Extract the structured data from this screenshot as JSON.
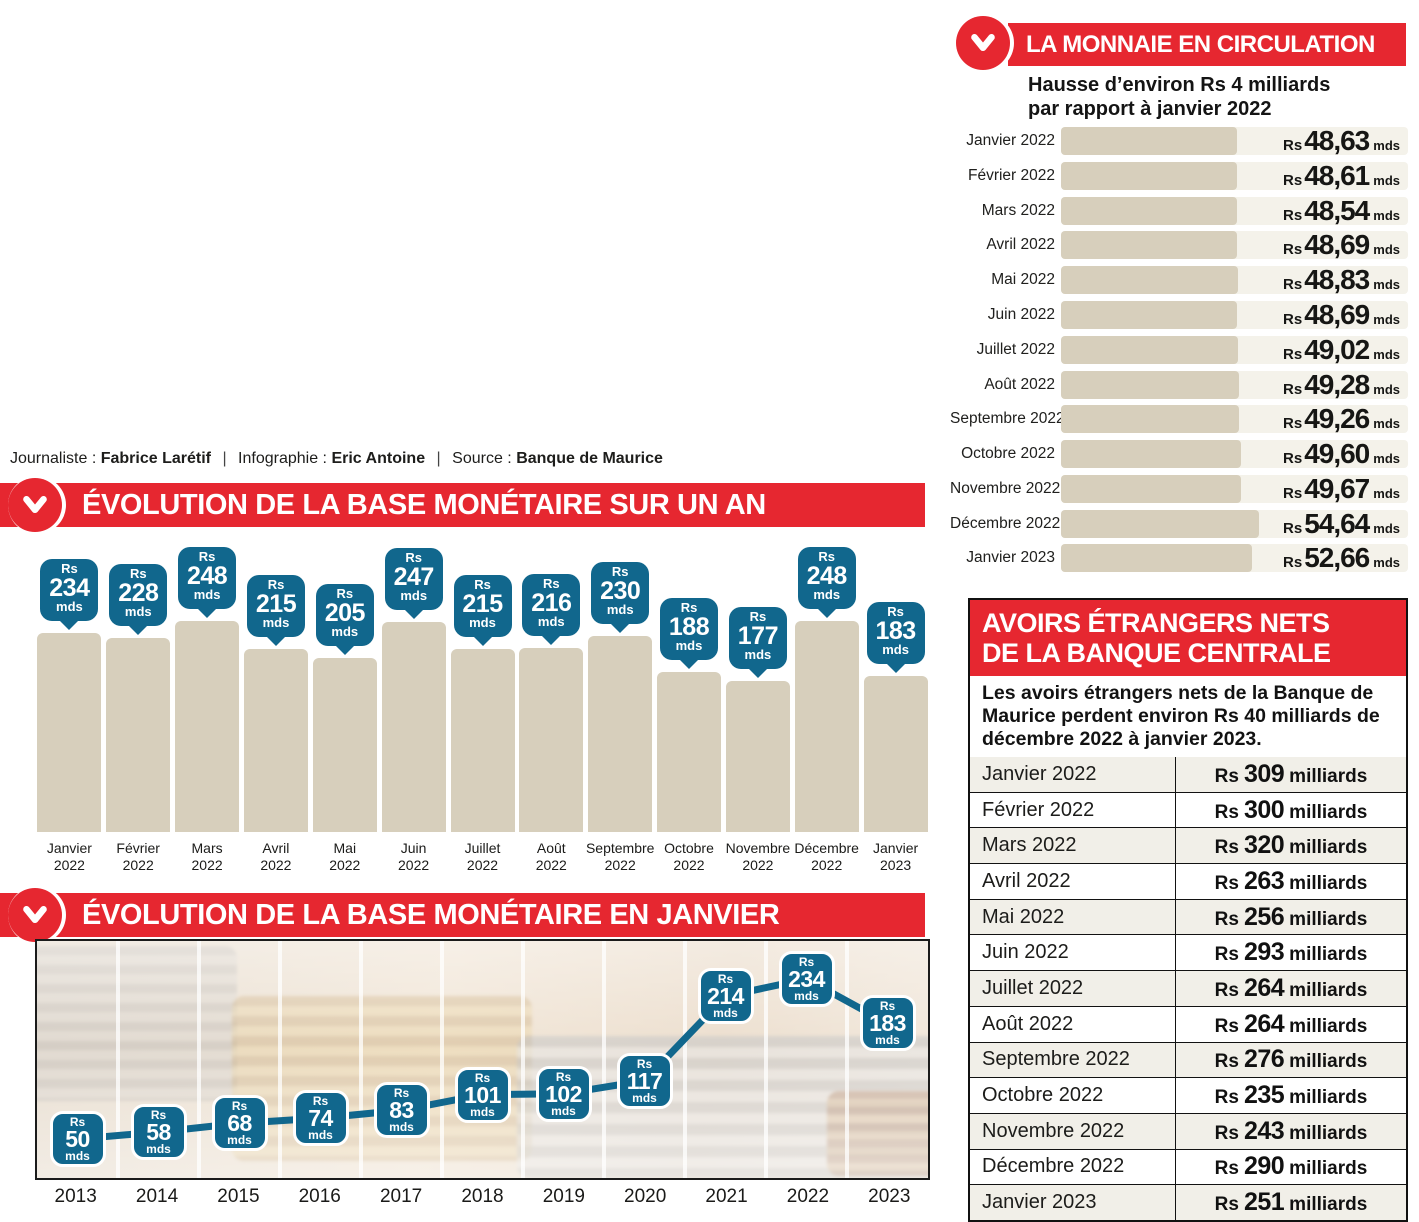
{
  "colors": {
    "red": "#e62730",
    "blue": "#11678d",
    "bar_beige": "#d7cfbc",
    "bar_track": "#f4f2ea",
    "row_alt": "#f1efe8",
    "ink": "#1c1c1a"
  },
  "credits": {
    "journalist_label": "Journaliste :",
    "journalist_name": "Fabrice Larétif",
    "separator": "|",
    "infography_label": "Infographie :",
    "infography_name": "Eric Antoine",
    "source_label": "Source :",
    "source_name": "Banque de Maurice"
  },
  "monnaie": {
    "title": "LA MONNAIE EN CIRCULATION",
    "subtitle_line1": "Hausse d’environ Rs 4 milliards",
    "subtitle_line2": "par rapport à janvier 2022",
    "currency_prefix": "Rs",
    "unit": "mds",
    "max_value": 54.64,
    "rows": [
      {
        "label": "Janvier 2022",
        "display": "48,63",
        "value": 48.63
      },
      {
        "label": "Février 2022",
        "display": "48,61",
        "value": 48.61
      },
      {
        "label": "Mars 2022",
        "display": "48,54",
        "value": 48.54
      },
      {
        "label": "Avril 2022",
        "display": "48,69",
        "value": 48.69
      },
      {
        "label": "Mai 2022",
        "display": "48,83",
        "value": 48.83
      },
      {
        "label": "Juin 2022",
        "display": "48,69",
        "value": 48.69
      },
      {
        "label": "Juillet 2022",
        "display": "49,02",
        "value": 49.02
      },
      {
        "label": "Août 2022",
        "display": "49,28",
        "value": 49.28
      },
      {
        "label": "Septembre 2022",
        "display": "49,26",
        "value": 49.26
      },
      {
        "label": "Octobre 2022",
        "display": "49,60",
        "value": 49.6
      },
      {
        "label": "Novembre 2022",
        "display": "49,67",
        "value": 49.67
      },
      {
        "label": "Décembre 2022",
        "display": "54,64",
        "value": 54.64
      },
      {
        "label": "Janvier 2023",
        "display": "52,66",
        "value": 52.66
      }
    ]
  },
  "base_annuelle": {
    "title": "ÉVOLUTION DE LA BASE MONÉTAIRE SUR UN AN",
    "currency_prefix": "Rs",
    "unit": "mds",
    "bars": [
      {
        "month": "Janvier",
        "year": "2022",
        "value": 234
      },
      {
        "month": "Février",
        "year": "2022",
        "value": 228
      },
      {
        "month": "Mars",
        "year": "2022",
        "value": 248
      },
      {
        "month": "Avril",
        "year": "2022",
        "value": 215
      },
      {
        "month": "Mai",
        "year": "2022",
        "value": 205
      },
      {
        "month": "Juin",
        "year": "2022",
        "value": 247
      },
      {
        "month": "Juillet",
        "year": "2022",
        "value": 215
      },
      {
        "month": "Août",
        "year": "2022",
        "value": 216
      },
      {
        "month": "Septembre",
        "year": "2022",
        "value": 230
      },
      {
        "month": "Octobre",
        "year": "2022",
        "value": 188
      },
      {
        "month": "Novembre",
        "year": "2022",
        "value": 177
      },
      {
        "month": "Décembre",
        "year": "2022",
        "value": 248
      },
      {
        "month": "Janvier",
        "year": "2023",
        "value": 183
      }
    ]
  },
  "base_janvier": {
    "title": "ÉVOLUTION DE LA BASE MONÉTAIRE EN JANVIER",
    "currency_prefix": "Rs",
    "unit": "mds",
    "points": [
      {
        "year": "2013",
        "value": 50
      },
      {
        "year": "2014",
        "value": 58
      },
      {
        "year": "2015",
        "value": 68
      },
      {
        "year": "2016",
        "value": 74
      },
      {
        "year": "2017",
        "value": 83
      },
      {
        "year": "2018",
        "value": 101
      },
      {
        "year": "2019",
        "value": 102
      },
      {
        "year": "2020",
        "value": 117
      },
      {
        "year": "2021",
        "value": 214
      },
      {
        "year": "2022",
        "value": 234
      },
      {
        "year": "2023",
        "value": 183
      }
    ]
  },
  "avoirs": {
    "title_line1": "AVOIRS ÉTRANGERS NETS",
    "title_line2": "DE LA BANQUE CENTRALE",
    "description": "Les avoirs étrangers nets de la Banque de Maurice perdent environ Rs 40 milliards de décembre 2022 à janvier 2023.",
    "currency_prefix": "Rs",
    "unit": "milliards",
    "rows": [
      {
        "label": "Janvier 2022",
        "value": "309"
      },
      {
        "label": "Février 2022",
        "value": "300"
      },
      {
        "label": "Mars 2022",
        "value": "320"
      },
      {
        "label": "Avril 2022",
        "value": "263"
      },
      {
        "label": "Mai 2022",
        "value": "256"
      },
      {
        "label": "Juin 2022",
        "value": "293"
      },
      {
        "label": "Juillet 2022",
        "value": "264"
      },
      {
        "label": "Août 2022",
        "value": "264"
      },
      {
        "label": "Septembre 2022",
        "value": "276"
      },
      {
        "label": "Octobre 2022",
        "value": "235"
      },
      {
        "label": "Novembre 2022",
        "value": "243"
      },
      {
        "label": "Décembre 2022",
        "value": "290"
      },
      {
        "label": "Janvier 2023",
        "value": "251"
      }
    ]
  },
  "chart_data": [
    {
      "type": "bar",
      "orientation": "horizontal",
      "title": "LA MONNAIE EN CIRCULATION",
      "subtitle": "Hausse d’environ Rs 4 milliards par rapport à janvier 2022",
      "categories": [
        "Janvier 2022",
        "Février 2022",
        "Mars 2022",
        "Avril 2022",
        "Mai 2022",
        "Juin 2022",
        "Juillet 2022",
        "Août 2022",
        "Septembre 2022",
        "Octobre 2022",
        "Novembre 2022",
        "Décembre 2022",
        "Janvier 2023"
      ],
      "values": [
        48.63,
        48.61,
        48.54,
        48.69,
        48.83,
        48.69,
        49.02,
        49.28,
        49.26,
        49.6,
        49.67,
        54.64,
        52.66
      ],
      "unit": "Rs mds",
      "xlim": [
        0,
        54.64
      ],
      "grid": false,
      "legend": false
    },
    {
      "type": "bar",
      "title": "ÉVOLUTION DE LA BASE MONÉTAIRE SUR UN AN",
      "categories": [
        "Janvier 2022",
        "Février 2022",
        "Mars 2022",
        "Avril 2022",
        "Mai 2022",
        "Juin 2022",
        "Juillet 2022",
        "Août 2022",
        "Septembre 2022",
        "Octobre 2022",
        "Novembre 2022",
        "Décembre 2022",
        "Janvier 2023"
      ],
      "values": [
        234,
        228,
        248,
        215,
        205,
        247,
        215,
        216,
        230,
        188,
        177,
        248,
        183
      ],
      "unit": "Rs mds",
      "ylim": [
        0,
        248
      ],
      "grid": false,
      "legend": false
    },
    {
      "type": "line",
      "title": "ÉVOLUTION DE LA BASE MONÉTAIRE EN JANVIER",
      "x": [
        "2013",
        "2014",
        "2015",
        "2016",
        "2017",
        "2018",
        "2019",
        "2020",
        "2021",
        "2022",
        "2023"
      ],
      "values": [
        50,
        58,
        68,
        74,
        83,
        101,
        102,
        117,
        214,
        234,
        183
      ],
      "unit": "Rs mds",
      "grid": false,
      "legend": false
    },
    {
      "type": "table",
      "title": "AVOIRS ÉTRANGERS NETS DE LA BANQUE CENTRALE",
      "description": "Les avoirs étrangers nets de la Banque de Maurice perdent environ Rs 40 milliards de décembre 2022 à janvier 2023.",
      "categories": [
        "Janvier 2022",
        "Février 2022",
        "Mars 2022",
        "Avril 2022",
        "Mai 2022",
        "Juin 2022",
        "Juillet 2022",
        "Août 2022",
        "Septembre 2022",
        "Octobre 2022",
        "Novembre 2022",
        "Décembre 2022",
        "Janvier 2023"
      ],
      "values": [
        309,
        300,
        320,
        263,
        256,
        293,
        264,
        264,
        276,
        235,
        243,
        290,
        251
      ],
      "unit": "Rs milliards"
    }
  ]
}
